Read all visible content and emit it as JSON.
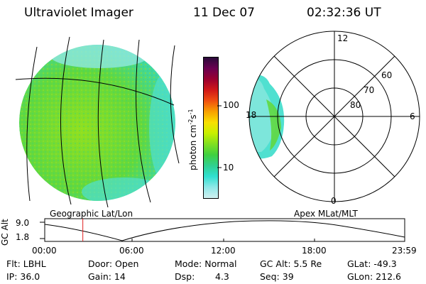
{
  "header": {
    "instrument": "Ultraviolet Imager",
    "date": "11 Dec 07",
    "time": "02:32:36 UT"
  },
  "left_panel": {
    "caption": "Geographic Lat/Lon"
  },
  "right_panel": {
    "caption": "Apex MLat/MLT",
    "mlt_labels": {
      "top": "12",
      "right": "6",
      "bottom": "0",
      "left": "18"
    },
    "lat_labels": [
      "60",
      "70",
      "80"
    ]
  },
  "colorbar": {
    "label": "photon cm",
    "label_sup1": "-2",
    "label_mid": "s",
    "label_sup2": "-1",
    "ticks": [
      "100",
      "10"
    ],
    "colors": [
      "#2a0a3a",
      "#6a0050",
      "#9a0030",
      "#d01818",
      "#f05010",
      "#f8a000",
      "#f8e000",
      "#c8f000",
      "#80e020",
      "#40d040",
      "#30d090",
      "#30e0d0",
      "#90e8e8",
      "#d0f0f0"
    ]
  },
  "altitude_plot": {
    "ylabel": "GC Alt",
    "ymax": "9.0",
    "ymin": "1.8",
    "xticks": [
      "00:00",
      "06:00",
      "12:00",
      "18:00",
      "23:59"
    ],
    "current_time_hours": 2.54,
    "marker_color": "#e02020"
  },
  "info": {
    "flt": "Flt: LBHL",
    "ip": "IP: 36.0",
    "door": "Door: Open",
    "gain": "Gain: 14",
    "mode": "Mode: Normal",
    "dsp_label": "Dsp:",
    "dsp_value": "4.3",
    "gc_alt": "GC Alt: 5.5 Re",
    "seq": "Seq: 39",
    "glat": "GLat: -49.3",
    "glon": "GLon: 212.6"
  }
}
